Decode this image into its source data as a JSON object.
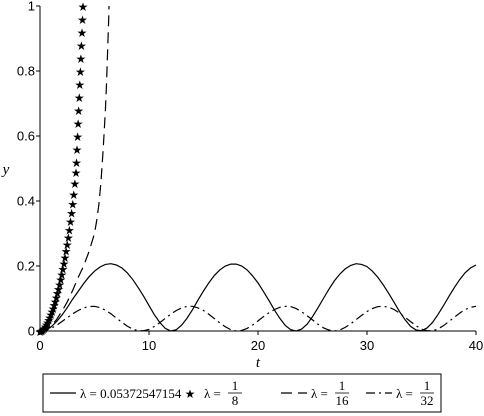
{
  "chart_data": {
    "type": "line",
    "xlabel": "t",
    "ylabel": "y",
    "xlim": [
      0,
      40
    ],
    "ylim": [
      0,
      1
    ],
    "x_ticks": [
      "0",
      "10",
      "20",
      "30",
      "40"
    ],
    "y_ticks": [
      "0",
      "0.2",
      "0.4",
      "0.6",
      "0.8",
      "1"
    ],
    "grid": false,
    "legend_position": "bottom",
    "series": [
      {
        "name": "λ = 0.05372547154",
        "style": "solid",
        "color": "#000000",
        "points": [
          [
            0,
            0
          ],
          [
            0.5,
            0.003
          ],
          [
            1,
            0.012
          ],
          [
            1.5,
            0.028
          ],
          [
            2,
            0.048
          ],
          [
            2.5,
            0.072
          ],
          [
            3,
            0.098
          ],
          [
            3.5,
            0.122
          ],
          [
            4,
            0.146
          ],
          [
            4.5,
            0.167
          ],
          [
            5,
            0.184
          ],
          [
            5.5,
            0.197
          ],
          [
            6,
            0.205
          ],
          [
            6.5,
            0.207
          ],
          [
            7,
            0.203
          ],
          [
            7.5,
            0.194
          ],
          [
            8,
            0.179
          ],
          [
            8.5,
            0.159
          ],
          [
            9,
            0.134
          ],
          [
            9.5,
            0.107
          ],
          [
            10,
            0.078
          ],
          [
            10.5,
            0.05
          ],
          [
            11,
            0.026
          ],
          [
            11.5,
            0.008
          ],
          [
            12,
            0.0
          ],
          [
            12.5,
            0.004
          ],
          [
            13,
            0.018
          ],
          [
            13.5,
            0.04
          ],
          [
            14,
            0.066
          ],
          [
            14.5,
            0.095
          ],
          [
            15,
            0.123
          ],
          [
            15.5,
            0.149
          ],
          [
            16,
            0.171
          ],
          [
            16.5,
            0.188
          ],
          [
            17,
            0.2
          ],
          [
            17.5,
            0.206
          ],
          [
            18,
            0.206
          ],
          [
            18.5,
            0.2
          ],
          [
            19,
            0.188
          ],
          [
            19.5,
            0.17
          ],
          [
            20,
            0.148
          ],
          [
            20.5,
            0.122
          ],
          [
            21,
            0.094
          ],
          [
            21.5,
            0.065
          ],
          [
            22,
            0.039
          ],
          [
            22.5,
            0.017
          ],
          [
            23,
            0.004
          ],
          [
            23.5,
            0.0
          ],
          [
            24,
            0.006
          ],
          [
            24.5,
            0.021
          ],
          [
            25,
            0.044
          ],
          [
            25.5,
            0.071
          ],
          [
            26,
            0.1
          ],
          [
            26.5,
            0.128
          ],
          [
            27,
            0.154
          ],
          [
            27.5,
            0.175
          ],
          [
            28,
            0.191
          ],
          [
            28.5,
            0.202
          ],
          [
            29,
            0.207
          ],
          [
            29.5,
            0.205
          ],
          [
            30,
            0.198
          ],
          [
            30.5,
            0.184
          ],
          [
            31,
            0.165
          ],
          [
            31.5,
            0.142
          ],
          [
            32,
            0.115
          ],
          [
            32.5,
            0.087
          ],
          [
            33,
            0.059
          ],
          [
            33.5,
            0.034
          ],
          [
            34,
            0.014
          ],
          [
            34.5,
            0.003
          ],
          [
            35,
            0.001
          ],
          [
            35.5,
            0.009
          ],
          [
            36,
            0.026
          ],
          [
            36.5,
            0.05
          ],
          [
            37,
            0.077
          ],
          [
            37.5,
            0.106
          ],
          [
            38,
            0.133
          ],
          [
            38.5,
            0.158
          ],
          [
            39,
            0.179
          ],
          [
            39.5,
            0.194
          ],
          [
            40,
            0.203
          ]
        ]
      },
      {
        "name": "λ = 1/8",
        "style": "star",
        "color": "#000000",
        "points": [
          [
            0,
            0
          ],
          [
            0.1,
            0.001
          ],
          [
            0.2,
            0.003
          ],
          [
            0.3,
            0.006
          ],
          [
            0.4,
            0.01
          ],
          [
            0.5,
            0.015
          ],
          [
            0.6,
            0.021
          ],
          [
            0.7,
            0.028
          ],
          [
            0.8,
            0.035
          ],
          [
            0.9,
            0.043
          ],
          [
            1,
            0.052
          ],
          [
            1.1,
            0.061
          ],
          [
            1.2,
            0.071
          ],
          [
            1.3,
            0.082
          ],
          [
            1.4,
            0.093
          ],
          [
            1.5,
            0.105
          ],
          [
            1.6,
            0.118
          ],
          [
            1.7,
            0.131
          ],
          [
            1.8,
            0.145
          ],
          [
            1.9,
            0.16
          ],
          [
            2,
            0.176
          ],
          [
            2.1,
            0.192
          ],
          [
            2.2,
            0.21
          ],
          [
            2.3,
            0.228
          ],
          [
            2.4,
            0.248
          ],
          [
            2.5,
            0.268
          ],
          [
            2.6,
            0.29
          ],
          [
            2.7,
            0.313
          ],
          [
            2.8,
            0.338
          ],
          [
            2.9,
            0.364
          ],
          [
            3,
            0.392
          ],
          [
            3.1,
            0.422
          ],
          [
            3.2,
            0.455
          ],
          [
            3.3,
            0.49
          ],
          [
            3.35,
            0.52
          ],
          [
            3.4,
            0.56
          ],
          [
            3.45,
            0.6
          ],
          [
            3.5,
            0.64
          ],
          [
            3.55,
            0.68
          ],
          [
            3.6,
            0.72
          ],
          [
            3.65,
            0.76
          ],
          [
            3.7,
            0.8
          ],
          [
            3.75,
            0.84
          ],
          [
            3.8,
            0.88
          ],
          [
            3.85,
            0.92
          ],
          [
            3.9,
            0.96
          ],
          [
            3.95,
            1.0
          ]
        ]
      },
      {
        "name": "λ = 1/16",
        "style": "dashed",
        "color": "#000000",
        "points": [
          [
            0,
            0
          ],
          [
            0.5,
            0.004
          ],
          [
            1,
            0.015
          ],
          [
            1.5,
            0.034
          ],
          [
            2,
            0.06
          ],
          [
            2.5,
            0.09
          ],
          [
            3,
            0.125
          ],
          [
            3.5,
            0.165
          ],
          [
            4,
            0.2
          ],
          [
            4.5,
            0.245
          ],
          [
            5,
            0.3
          ],
          [
            5.2,
            0.34
          ],
          [
            5.4,
            0.39
          ],
          [
            5.6,
            0.46
          ],
          [
            5.8,
            0.56
          ],
          [
            6,
            0.68
          ],
          [
            6.1,
            0.76
          ],
          [
            6.2,
            0.86
          ],
          [
            6.3,
            0.96
          ],
          [
            6.33,
            1.0
          ]
        ]
      },
      {
        "name": "λ = 1/32",
        "style": "dashdot",
        "color": "#000000",
        "points": [
          [
            0,
            0
          ],
          [
            0.5,
            0.002
          ],
          [
            1,
            0.008
          ],
          [
            1.5,
            0.017
          ],
          [
            2,
            0.029
          ],
          [
            2.5,
            0.041
          ],
          [
            3,
            0.053
          ],
          [
            3.5,
            0.063
          ],
          [
            4,
            0.071
          ],
          [
            4.5,
            0.075
          ],
          [
            5,
            0.076
          ],
          [
            5.5,
            0.072
          ],
          [
            6,
            0.064
          ],
          [
            6.5,
            0.053
          ],
          [
            7,
            0.04
          ],
          [
            7.5,
            0.027
          ],
          [
            8,
            0.015
          ],
          [
            8.5,
            0.006
          ],
          [
            9,
            0.001
          ],
          [
            9.5,
            0.001
          ],
          [
            10,
            0.005
          ],
          [
            10.5,
            0.014
          ],
          [
            11,
            0.026
          ],
          [
            11.5,
            0.039
          ],
          [
            12,
            0.052
          ],
          [
            12.5,
            0.063
          ],
          [
            13,
            0.071
          ],
          [
            13.5,
            0.076
          ],
          [
            14,
            0.076
          ],
          [
            14.5,
            0.071
          ],
          [
            15,
            0.063
          ],
          [
            15.5,
            0.051
          ],
          [
            16,
            0.038
          ],
          [
            16.5,
            0.025
          ],
          [
            17,
            0.013
          ],
          [
            17.5,
            0.004
          ],
          [
            18,
            0.0
          ],
          [
            18.5,
            0.002
          ],
          [
            19,
            0.008
          ],
          [
            19.5,
            0.018
          ],
          [
            20,
            0.031
          ],
          [
            20.5,
            0.044
          ],
          [
            21,
            0.056
          ],
          [
            21.5,
            0.066
          ],
          [
            22,
            0.073
          ],
          [
            22.5,
            0.076
          ],
          [
            23,
            0.075
          ],
          [
            23.5,
            0.069
          ],
          [
            24,
            0.059
          ],
          [
            24.5,
            0.047
          ],
          [
            25,
            0.034
          ],
          [
            25.5,
            0.021
          ],
          [
            26,
            0.01
          ],
          [
            26.5,
            0.003
          ],
          [
            27,
            0.0
          ],
          [
            27.5,
            0.003
          ],
          [
            28,
            0.011
          ],
          [
            28.5,
            0.022
          ],
          [
            29,
            0.035
          ],
          [
            29.5,
            0.048
          ],
          [
            30,
            0.06
          ],
          [
            30.5,
            0.069
          ],
          [
            31,
            0.075
          ],
          [
            31.5,
            0.076
          ],
          [
            32,
            0.073
          ],
          [
            32.5,
            0.066
          ],
          [
            33,
            0.055
          ],
          [
            33.5,
            0.042
          ],
          [
            34,
            0.029
          ],
          [
            34.5,
            0.016
          ],
          [
            35,
            0.006
          ],
          [
            35.5,
            0.001
          ],
          [
            36,
            0.001
          ],
          [
            36.5,
            0.006
          ],
          [
            37,
            0.016
          ],
          [
            37.5,
            0.029
          ],
          [
            38,
            0.042
          ],
          [
            38.5,
            0.055
          ],
          [
            39,
            0.066
          ],
          [
            39.5,
            0.073
          ],
          [
            40,
            0.076
          ]
        ]
      }
    ],
    "legend": {
      "entries": [
        {
          "style": "solid",
          "text": "λ = 0.05372547154"
        },
        {
          "style": "star",
          "prefix": "λ =",
          "num": "1",
          "den": "8"
        },
        {
          "style": "dashed",
          "prefix": "λ =",
          "num": "1",
          "den": "16"
        },
        {
          "style": "dashdot",
          "prefix": "λ =",
          "num": "1",
          "den": "32"
        }
      ]
    }
  }
}
